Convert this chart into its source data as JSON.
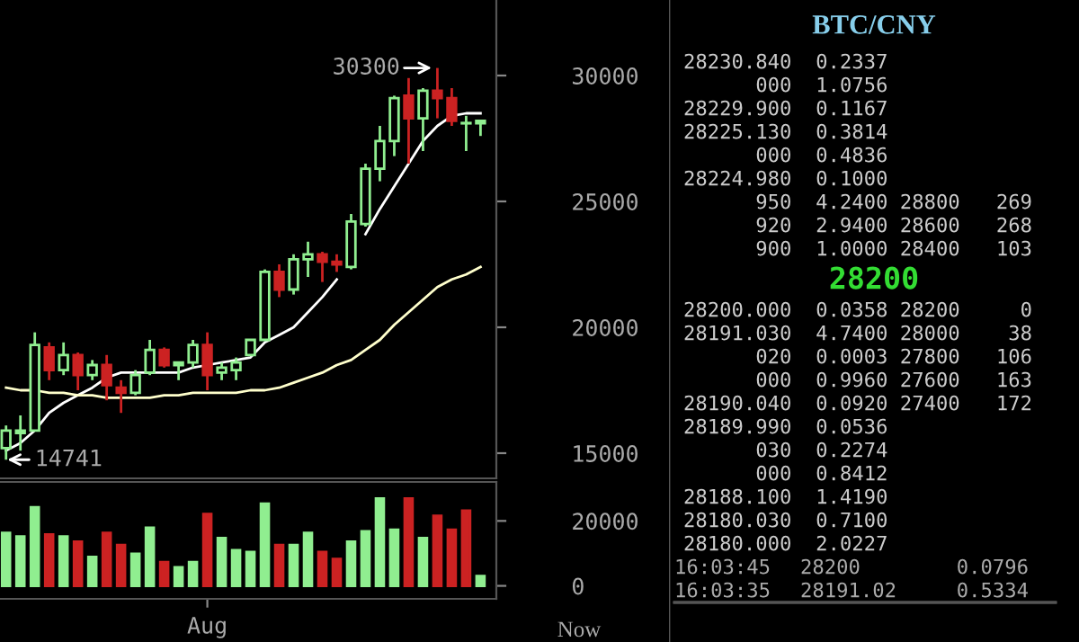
{
  "chart_data": [
    {
      "type": "candlestick",
      "categories": [
        null,
        null,
        null,
        null,
        null,
        null,
        null,
        null,
        null,
        null,
        null,
        null,
        null,
        null,
        null,
        null,
        null,
        null,
        null,
        null,
        null,
        null,
        null,
        null,
        null,
        null,
        null,
        null,
        null,
        null,
        null,
        null,
        null,
        null
      ],
      "ohlc": [
        [
          15200,
          16100,
          14741,
          15900
        ],
        [
          15800,
          16500,
          15100,
          15900
        ],
        [
          15900,
          19800,
          15900,
          19300
        ],
        [
          19200,
          19400,
          17900,
          18300
        ],
        [
          18300,
          19400,
          18100,
          18900
        ],
        [
          18900,
          19000,
          17500,
          18100
        ],
        [
          18100,
          18700,
          17900,
          18500
        ],
        [
          18500,
          18900,
          17100,
          17700
        ],
        [
          17600,
          17900,
          16600,
          17400
        ],
        [
          17400,
          18300,
          17300,
          18100
        ],
        [
          18200,
          19500,
          18100,
          19100
        ],
        [
          19100,
          19200,
          18400,
          18500
        ],
        [
          18500,
          18600,
          17900,
          18600
        ],
        [
          18600,
          19500,
          18400,
          19300
        ],
        [
          19300,
          19800,
          17500,
          18100
        ],
        [
          18200,
          18600,
          17900,
          18400
        ],
        [
          18300,
          18800,
          17900,
          18600
        ],
        [
          18900,
          19500,
          18900,
          19500
        ],
        [
          19500,
          22300,
          19500,
          22200
        ],
        [
          22200,
          22500,
          21200,
          21500
        ],
        [
          21500,
          22900,
          21300,
          22700
        ],
        [
          22700,
          23400,
          22000,
          22900
        ],
        [
          22900,
          23000,
          21800,
          22600
        ],
        [
          22600,
          22900,
          22200,
          22500
        ],
        [
          22400,
          24500,
          22300,
          24200
        ],
        [
          24100,
          26500,
          24000,
          26300
        ],
        [
          26300,
          28000,
          25800,
          27400
        ],
        [
          27400,
          29200,
          26800,
          29100
        ],
        [
          29200,
          29900,
          26500,
          28300
        ],
        [
          28300,
          29500,
          27000,
          29400
        ],
        [
          29400,
          30300,
          28300,
          29100
        ],
        [
          29100,
          29500,
          28000,
          28200
        ],
        [
          28100,
          28400,
          27000,
          28100
        ],
        [
          28100,
          28200,
          27600,
          28200
        ]
      ],
      "series": [
        {
          "type": "line",
          "color": "#ffffff",
          "values": [
            15100,
            15400,
            15900,
            16600,
            17000,
            17300,
            17600,
            18000,
            18200,
            18200,
            18200,
            18200,
            18200,
            18400,
            18500,
            18600,
            18700,
            18800,
            19400,
            19700,
            20000,
            20600,
            21200,
            21900,
            null,
            23700,
            24700,
            25600,
            26500,
            27400,
            28000,
            28400,
            28500,
            28500
          ]
        },
        {
          "type": "line",
          "color": "#ffffcc",
          "values": [
            17600,
            17500,
            17500,
            17400,
            17400,
            17300,
            17300,
            17200,
            17200,
            17200,
            17200,
            17300,
            17300,
            17400,
            17400,
            17400,
            17400,
            17500,
            17500,
            17600,
            17800,
            18000,
            18200,
            18500,
            18700,
            19100,
            19500,
            20100,
            20600,
            21100,
            21600,
            21900,
            22100,
            22400
          ]
        }
      ],
      "ylim": [
        14000,
        33000
      ],
      "yticks": [
        15000,
        20000,
        25000,
        30000
      ],
      "tick_labels": "y",
      "grid": false,
      "annotations": [
        "30300",
        "14741"
      ]
    },
    {
      "type": "bar",
      "categories": [
        null,
        null,
        null,
        null,
        null,
        null,
        null,
        null,
        null,
        null,
        null,
        null,
        null,
        null,
        "Aug",
        null,
        null,
        null,
        null,
        null,
        null,
        null,
        null,
        null,
        null,
        null,
        null,
        null,
        null,
        null,
        null,
        null,
        null,
        null
      ],
      "values": [
        16300,
        15200,
        24200,
        15800,
        15200,
        13600,
        8900,
        16300,
        12600,
        9900,
        17900,
        7300,
        5700,
        7300,
        22100,
        14700,
        11000,
        10400,
        25300,
        12600,
        12600,
        16300,
        10400,
        8300,
        13600,
        16800,
        26900,
        17300,
        26900,
        14700,
        21600,
        17300,
        23200,
        3000
      ],
      "colors": [
        "#90ee90",
        "#90ee90",
        "#90ee90",
        "#cc2222",
        "#90ee90",
        "#cc2222",
        "#90ee90",
        "#cc2222",
        "#cc2222",
        "#90ee90",
        "#90ee90",
        "#cc2222",
        "#90ee90",
        "#90ee90",
        "#cc2222",
        "#90ee90",
        "#90ee90",
        "#90ee90",
        "#90ee90",
        "#cc2222",
        "#90ee90",
        "#90ee90",
        "#cc2222",
        "#cc2222",
        "#90ee90",
        "#90ee90",
        "#90ee90",
        "#90ee90",
        "#cc2222",
        "#90ee90",
        "#cc2222",
        "#cc2222",
        "#cc2222",
        "#90ee90"
      ],
      "ylim": [
        -4000,
        32000
      ],
      "yticks": [
        0,
        20000
      ],
      "grid": false,
      "annotations": [
        "Now"
      ]
    },
    {
      "type": "other",
      "title": "BTC/CNY",
      "subtitle": "28200",
      "annotations": [
        "28230.840 0.2337",
        "000 1.0756",
        "28229.900 0.1167",
        "28225.130 0.3814",
        "000 0.4836",
        "28224.980 0.1000",
        "950 4.2400 28800 269",
        "920 2.9400 28600 268",
        "900 1.0000 28400 103",
        "28200.000 0.0358 28200 0",
        "28191.030 4.7400 28000 38",
        "020 0.0003 27800 106",
        "000 0.9960 27600 163",
        "28190.040 0.0920 27400 172",
        "28189.990 0.0536",
        "030 0.2274",
        "000 0.8412",
        "28188.100 1.4190",
        "28180.030 0.7100",
        "28180.000 2.0227",
        "16:03:45 28200 0.0796",
        "16:03:35 28191.02 0.5334"
      ]
    }
  ]
}
